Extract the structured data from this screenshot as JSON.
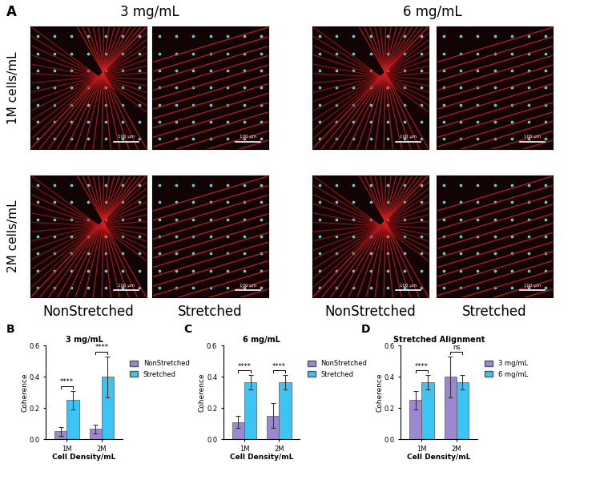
{
  "panel_a": {
    "label": "A",
    "columns": [
      "3 mg/mL",
      "6 mg/mL"
    ],
    "rows": [
      "1M cells/mL",
      "2M cells/mL"
    ],
    "conditions": [
      "NonStretched",
      "Stretched",
      "NonStretched",
      "Stretched"
    ],
    "scale_bar": "100 µm"
  },
  "chart_data": [
    {
      "panel": "B",
      "type": "bar",
      "title": "3 mg/mL",
      "x_label": "Cell Density/mL",
      "y_label": "Coherence",
      "categories": [
        "1M",
        "2M"
      ],
      "series": [
        {
          "name": "NonStretched",
          "color": "#9b88d1",
          "values": [
            0.05,
            0.065
          ],
          "errors": [
            0.03,
            0.03
          ]
        },
        {
          "name": "Stretched",
          "color": "#3cc4f5",
          "values": [
            0.25,
            0.4
          ],
          "errors": [
            0.06,
            0.13
          ]
        }
      ],
      "significance": [
        "****",
        "****"
      ],
      "ylim": [
        0.0,
        0.6
      ],
      "yticks": [
        0.0,
        0.2,
        0.4,
        0.6
      ],
      "legend": "right"
    },
    {
      "panel": "C",
      "type": "bar",
      "title": "6 mg/mL",
      "x_label": "Cell Density/mL",
      "y_label": "Coherence",
      "categories": [
        "1M",
        "2M"
      ],
      "series": [
        {
          "name": "NonStretched",
          "color": "#9b88d1",
          "values": [
            0.11,
            0.15
          ],
          "errors": [
            0.04,
            0.08
          ]
        },
        {
          "name": "Stretched",
          "color": "#3cc4f5",
          "values": [
            0.365,
            0.365
          ],
          "errors": [
            0.045,
            0.045
          ]
        }
      ],
      "significance": [
        "****",
        "****"
      ],
      "ylim": [
        0.0,
        0.6
      ],
      "yticks": [
        0.0,
        0.2,
        0.4,
        0.6
      ],
      "legend": "right"
    },
    {
      "panel": "D",
      "type": "bar",
      "title": "Stretched Alignment",
      "x_label": "Cell Density/mL",
      "y_label": "Coherence",
      "categories": [
        "1M",
        "2M"
      ],
      "series": [
        {
          "name": "3 mg/mL",
          "color": "#9b88d1",
          "values": [
            0.25,
            0.4
          ],
          "errors": [
            0.06,
            0.13
          ]
        },
        {
          "name": "6 mg/mL",
          "color": "#3cc4f5",
          "values": [
            0.365,
            0.365
          ],
          "errors": [
            0.045,
            0.045
          ]
        }
      ],
      "significance": [
        "****",
        "ns"
      ],
      "ylim": [
        0.0,
        0.6
      ],
      "yticks": [
        0.0,
        0.2,
        0.4,
        0.6
      ],
      "legend": "right"
    }
  ]
}
